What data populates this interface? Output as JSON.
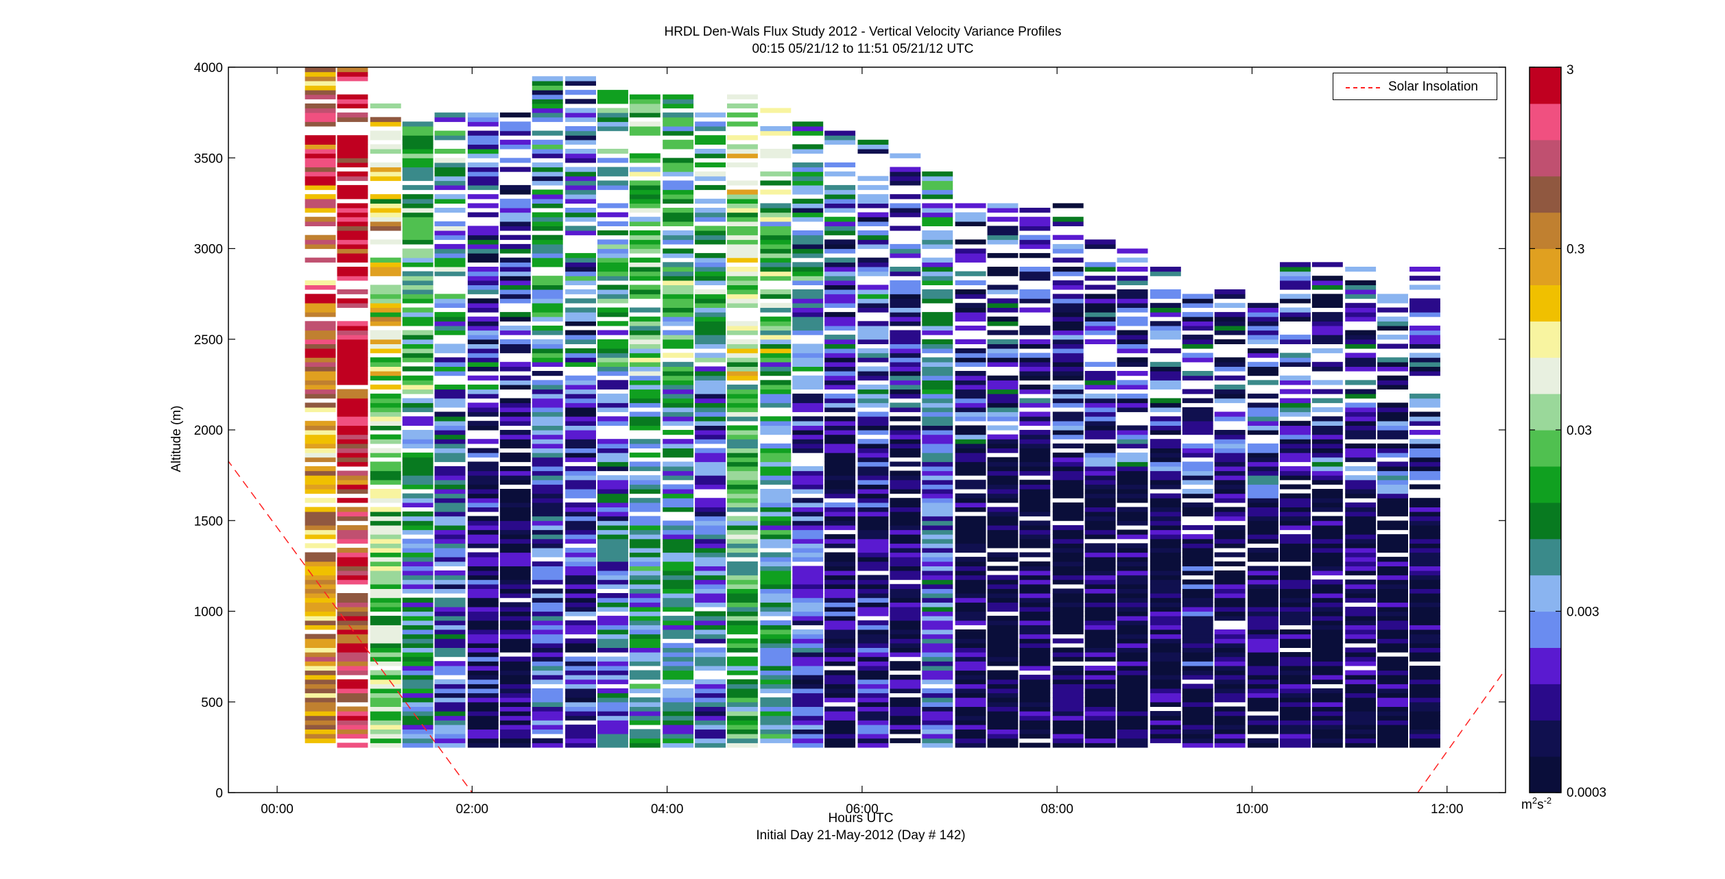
{
  "chart_data": {
    "type": "heatmap",
    "title": "HRDL Den-Wals Flux Study 2012 - Vertical Velocity Variance Profiles",
    "subtitle": "00:15 05/21/12 to 11:51 05/21/12  UTC",
    "xlabel": "Hours UTC",
    "xlabel2": "Initial Day 21-May-2012 (Day # 142)",
    "ylabel": "Altitude (m)",
    "xlim": [
      -0.5,
      12.6
    ],
    "ylim": [
      0,
      4000
    ],
    "x_ticks": [
      {
        "value": 0,
        "label": "00:00"
      },
      {
        "value": 2,
        "label": "02:00"
      },
      {
        "value": 4,
        "label": "04:00"
      },
      {
        "value": 6,
        "label": "06:00"
      },
      {
        "value": 8,
        "label": "08:00"
      },
      {
        "value": 10,
        "label": "10:00"
      },
      {
        "value": 12,
        "label": "12:00"
      }
    ],
    "y_ticks": [
      {
        "value": 0,
        "label": "0"
      },
      {
        "value": 500,
        "label": "500"
      },
      {
        "value": 1000,
        "label": "1000"
      },
      {
        "value": 1500,
        "label": "1500"
      },
      {
        "value": 2000,
        "label": "2000"
      },
      {
        "value": 2500,
        "label": "2500"
      },
      {
        "value": 3000,
        "label": "3000"
      },
      {
        "value": 3500,
        "label": "3500"
      },
      {
        "value": 4000,
        "label": "4000"
      }
    ],
    "colorbar": {
      "scale": "log",
      "range": [
        0.0003,
        3
      ],
      "unit_base": "m",
      "unit_exp1": "2",
      "unit_mid": "s",
      "unit_exp2": "-2",
      "ticks": [
        {
          "value": 0.0003,
          "label": "0.0003"
        },
        {
          "value": 0.003,
          "label": "0.003"
        },
        {
          "value": 0.03,
          "label": "0.03"
        },
        {
          "value": 0.3,
          "label": "0.3"
        },
        {
          "value": 3,
          "label": "3"
        }
      ],
      "colors": [
        "#0a0e3a",
        "#10104f",
        "#2a0a8a",
        "#5a1ad0",
        "#6a8cf0",
        "#8ab4f0",
        "#3a8a8a",
        "#087a20",
        "#10a020",
        "#50c050",
        "#9ad89a",
        "#e8f0e0",
        "#f8f4a0",
        "#f0c000",
        "#e0a020",
        "#c08030",
        "#905840",
        "#c05070",
        "#f05080",
        "#c00020"
      ]
    },
    "legend": {
      "position": "top-right",
      "label": "Solar Insolation",
      "color": "#ff2020",
      "style": "dashed"
    },
    "solar_insolation": {
      "x": [
        -0.6,
        2.0,
        11.7,
        12.6
      ],
      "y": [
        1900,
        0,
        0,
        680
      ]
    },
    "profiles": {
      "times": [
        0.45,
        0.78,
        1.12,
        1.45,
        1.78,
        2.12,
        2.45,
        2.78,
        3.12,
        3.45,
        3.78,
        4.12,
        4.45,
        4.78,
        5.12,
        5.45,
        5.78,
        6.12,
        6.45,
        6.78,
        7.12,
        7.45,
        7.78,
        8.12,
        8.45,
        8.78,
        9.12,
        9.45,
        9.78,
        10.12,
        10.45,
        10.78,
        11.12,
        11.45,
        11.78
      ],
      "top_altitude_m": [
        4000,
        4000,
        3800,
        3700,
        3800,
        3750,
        3750,
        4000,
        3950,
        3900,
        3880,
        3850,
        3800,
        3850,
        3800,
        3750,
        3650,
        3600,
        3550,
        3450,
        3250,
        3250,
        3250,
        3250,
        3050,
        3050,
        2900,
        2750,
        2800,
        2700,
        2950,
        2950,
        2900,
        2750,
        2900
      ],
      "bottom_altitude_m": 250,
      "dominant_log10_variance": [
        -0.6,
        0.0,
        -1.5,
        -2.3,
        -2.6,
        -3.2,
        -3.3,
        -2.7,
        -2.9,
        -2.6,
        -2.2,
        -2.3,
        -2.6,
        -1.8,
        -2.2,
        -2.8,
        -3.2,
        -3.1,
        -3.3,
        -2.6,
        -3.3,
        -3.4,
        -3.4,
        -3.4,
        -3.3,
        -3.4,
        -3.3,
        -3.2,
        -3.3,
        -3.3,
        -3.4,
        -3.4,
        -3.3,
        -3.4,
        -3.4
      ]
    }
  }
}
